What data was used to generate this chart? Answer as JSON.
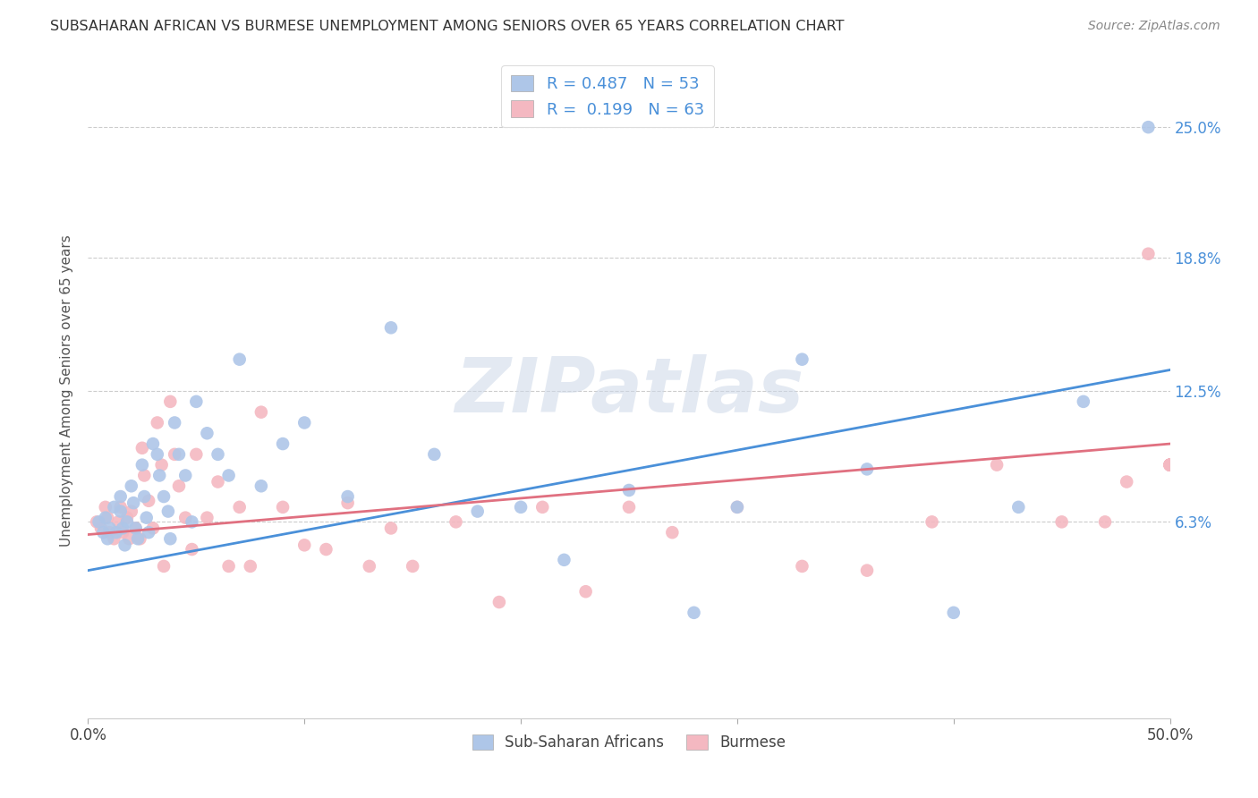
{
  "title": "SUBSAHARAN AFRICAN VS BURMESE UNEMPLOYMENT AMONG SENIORS OVER 65 YEARS CORRELATION CHART",
  "source": "Source: ZipAtlas.com",
  "ylabel": "Unemployment Among Seniors over 65 years",
  "xlim": [
    0.0,
    0.5
  ],
  "ylim": [
    -0.03,
    0.28
  ],
  "yticks": [
    0.063,
    0.125,
    0.188,
    0.25
  ],
  "ytick_labels": [
    "6.3%",
    "12.5%",
    "18.8%",
    "25.0%"
  ],
  "blue_R": 0.487,
  "blue_N": 53,
  "pink_R": 0.199,
  "pink_N": 63,
  "blue_color": "#aec6e8",
  "pink_color": "#f4b8c1",
  "blue_line_color": "#4a90d9",
  "pink_line_color": "#e07080",
  "legend_label_blue": "Sub-Saharan Africans",
  "legend_label_pink": "Burmese",
  "watermark_text": "ZIPatlas",
  "blue_scatter_x": [
    0.005,
    0.007,
    0.008,
    0.009,
    0.01,
    0.012,
    0.013,
    0.015,
    0.015,
    0.016,
    0.017,
    0.018,
    0.02,
    0.021,
    0.022,
    0.023,
    0.025,
    0.026,
    0.027,
    0.028,
    0.03,
    0.032,
    0.033,
    0.035,
    0.037,
    0.038,
    0.04,
    0.042,
    0.045,
    0.048,
    0.05,
    0.055,
    0.06,
    0.065,
    0.07,
    0.08,
    0.09,
    0.1,
    0.12,
    0.14,
    0.16,
    0.18,
    0.2,
    0.22,
    0.25,
    0.28,
    0.3,
    0.33,
    0.36,
    0.4,
    0.43,
    0.46,
    0.49
  ],
  "blue_scatter_y": [
    0.063,
    0.058,
    0.065,
    0.055,
    0.06,
    0.07,
    0.058,
    0.075,
    0.068,
    0.06,
    0.052,
    0.063,
    0.08,
    0.072,
    0.06,
    0.055,
    0.09,
    0.075,
    0.065,
    0.058,
    0.1,
    0.095,
    0.085,
    0.075,
    0.068,
    0.055,
    0.11,
    0.095,
    0.085,
    0.063,
    0.12,
    0.105,
    0.095,
    0.085,
    0.14,
    0.08,
    0.1,
    0.11,
    0.075,
    0.155,
    0.095,
    0.068,
    0.07,
    0.045,
    0.078,
    0.02,
    0.07,
    0.14,
    0.088,
    0.02,
    0.07,
    0.12,
    0.25
  ],
  "pink_scatter_x": [
    0.004,
    0.006,
    0.008,
    0.009,
    0.01,
    0.012,
    0.014,
    0.015,
    0.016,
    0.018,
    0.019,
    0.02,
    0.022,
    0.024,
    0.025,
    0.026,
    0.028,
    0.03,
    0.032,
    0.034,
    0.035,
    0.038,
    0.04,
    0.042,
    0.045,
    0.048,
    0.05,
    0.055,
    0.06,
    0.065,
    0.07,
    0.075,
    0.08,
    0.09,
    0.1,
    0.11,
    0.12,
    0.13,
    0.14,
    0.15,
    0.17,
    0.19,
    0.21,
    0.23,
    0.25,
    0.27,
    0.3,
    0.33,
    0.36,
    0.39,
    0.42,
    0.45,
    0.47,
    0.48,
    0.49,
    0.5,
    0.5,
    0.5,
    0.5,
    0.5,
    0.5,
    0.5,
    0.5
  ],
  "pink_scatter_y": [
    0.063,
    0.06,
    0.07,
    0.065,
    0.058,
    0.055,
    0.063,
    0.07,
    0.058,
    0.065,
    0.055,
    0.068,
    0.06,
    0.055,
    0.098,
    0.085,
    0.073,
    0.06,
    0.11,
    0.09,
    0.042,
    0.12,
    0.095,
    0.08,
    0.065,
    0.05,
    0.095,
    0.065,
    0.082,
    0.042,
    0.07,
    0.042,
    0.115,
    0.07,
    0.052,
    0.05,
    0.072,
    0.042,
    0.06,
    0.042,
    0.063,
    0.025,
    0.07,
    0.03,
    0.07,
    0.058,
    0.07,
    0.042,
    0.04,
    0.063,
    0.09,
    0.063,
    0.063,
    0.082,
    0.19,
    0.09,
    0.09,
    0.09,
    0.09,
    0.09,
    0.09,
    0.09,
    0.09
  ]
}
